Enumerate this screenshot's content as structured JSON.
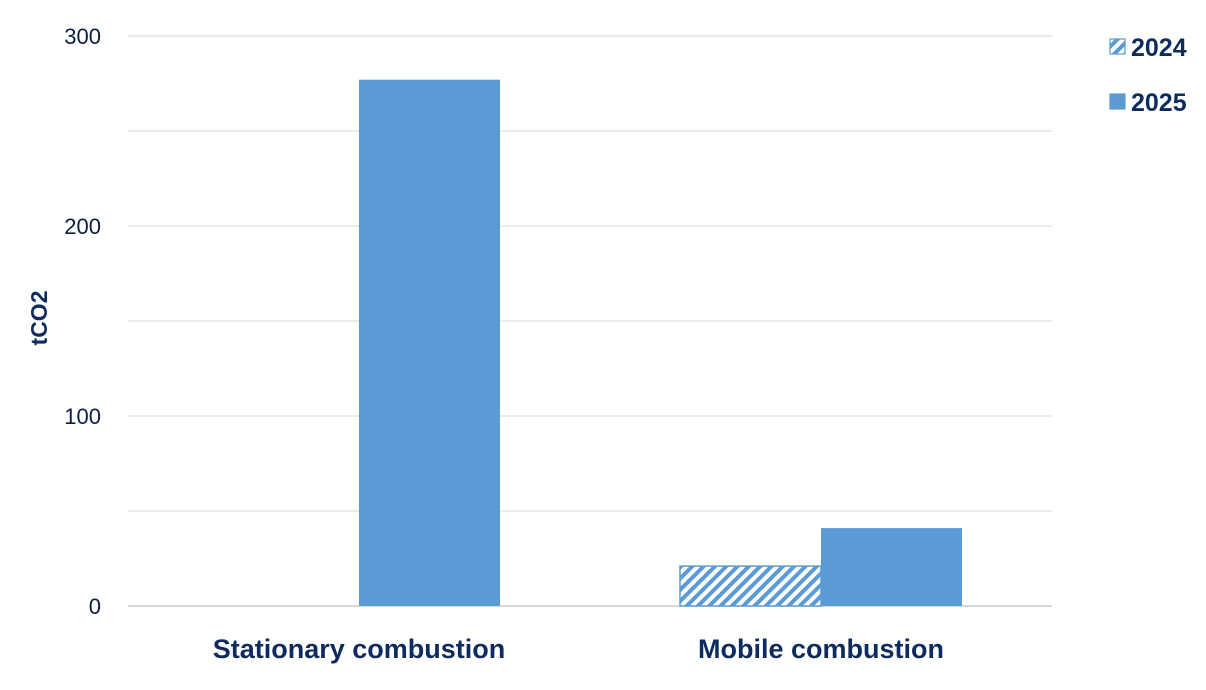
{
  "chart_data": {
    "type": "bar",
    "categories": [
      "Stationary combustion",
      "Mobile combustion"
    ],
    "series": [
      {
        "name": "2024",
        "values": [
          0,
          21
        ],
        "pattern": "hatched"
      },
      {
        "name": "2025",
        "values": [
          277,
          41
        ],
        "pattern": "solid"
      }
    ],
    "ylabel": "tCO2",
    "ylim": [
      0,
      300
    ],
    "yticks": [
      0,
      100,
      200,
      300
    ],
    "grid": true,
    "legend_position": "top-right"
  },
  "colors": {
    "bar": "#5b9bd5",
    "grid": "#d9d9d9",
    "label_text": "#0d2b5c",
    "tick_text": "#0d1f44"
  }
}
